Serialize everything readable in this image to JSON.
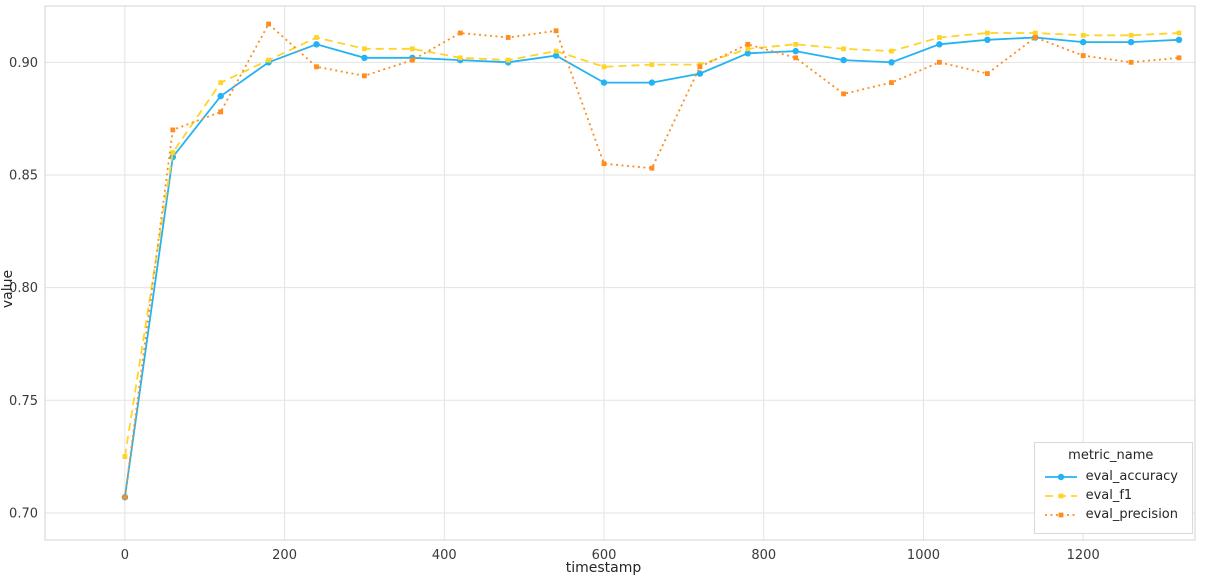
{
  "chart_data": {
    "type": "line",
    "title": "",
    "xlabel": "timestamp",
    "ylabel": "value",
    "xlim": [
      -100,
      1340
    ],
    "ylim": [
      0.688,
      0.925
    ],
    "grid": true,
    "background": "#ffffff",
    "grid_color": "#e3e3e3",
    "border_color": "#d3d3d3",
    "tick_color": "#3a3a3a",
    "x_ticks": [
      0,
      200,
      400,
      600,
      800,
      1000,
      1200
    ],
    "x_tick_labels": [
      "0",
      "200",
      "400",
      "600",
      "800",
      "1000",
      "1200"
    ],
    "y_ticks": [
      0.7,
      0.75,
      0.8,
      0.85,
      0.9
    ],
    "y_tick_labels": [
      "0.70",
      "0.75",
      "0.80",
      "0.85",
      "0.90"
    ],
    "legend": {
      "title": "metric_name",
      "position": "lower right"
    },
    "x": [
      0,
      60,
      120,
      180,
      240,
      300,
      360,
      420,
      480,
      540,
      600,
      660,
      720,
      780,
      840,
      900,
      960,
      1020,
      1080,
      1140,
      1200,
      1260,
      1320
    ],
    "series": [
      {
        "name": "eval_accuracy",
        "color": "#24b3f2",
        "dash": "solid",
        "marker": "circle",
        "values": [
          0.707,
          0.858,
          0.885,
          0.9,
          0.908,
          0.902,
          0.902,
          0.901,
          0.9,
          0.903,
          0.891,
          0.891,
          0.895,
          0.904,
          0.905,
          0.901,
          0.9,
          0.908,
          0.91,
          0.911,
          0.909,
          0.909,
          0.91
        ]
      },
      {
        "name": "eval_f1",
        "color": "#ffd42a",
        "dash": "dashed",
        "marker": "square",
        "values": [
          0.725,
          0.86,
          0.891,
          0.901,
          0.911,
          0.906,
          0.906,
          0.902,
          0.901,
          0.905,
          0.898,
          0.899,
          0.899,
          0.906,
          0.908,
          0.906,
          0.905,
          0.911,
          0.913,
          0.913,
          0.912,
          0.912,
          0.913
        ]
      },
      {
        "name": "eval_precision",
        "color": "#ff8d1e",
        "dash": "dotted",
        "marker": "square",
        "values": [
          0.707,
          0.87,
          0.878,
          0.917,
          0.898,
          0.894,
          0.901,
          0.913,
          0.911,
          0.914,
          0.855,
          0.853,
          0.898,
          0.908,
          0.902,
          0.886,
          0.891,
          0.9,
          0.895,
          0.911,
          0.903,
          0.9,
          0.902
        ]
      }
    ]
  }
}
